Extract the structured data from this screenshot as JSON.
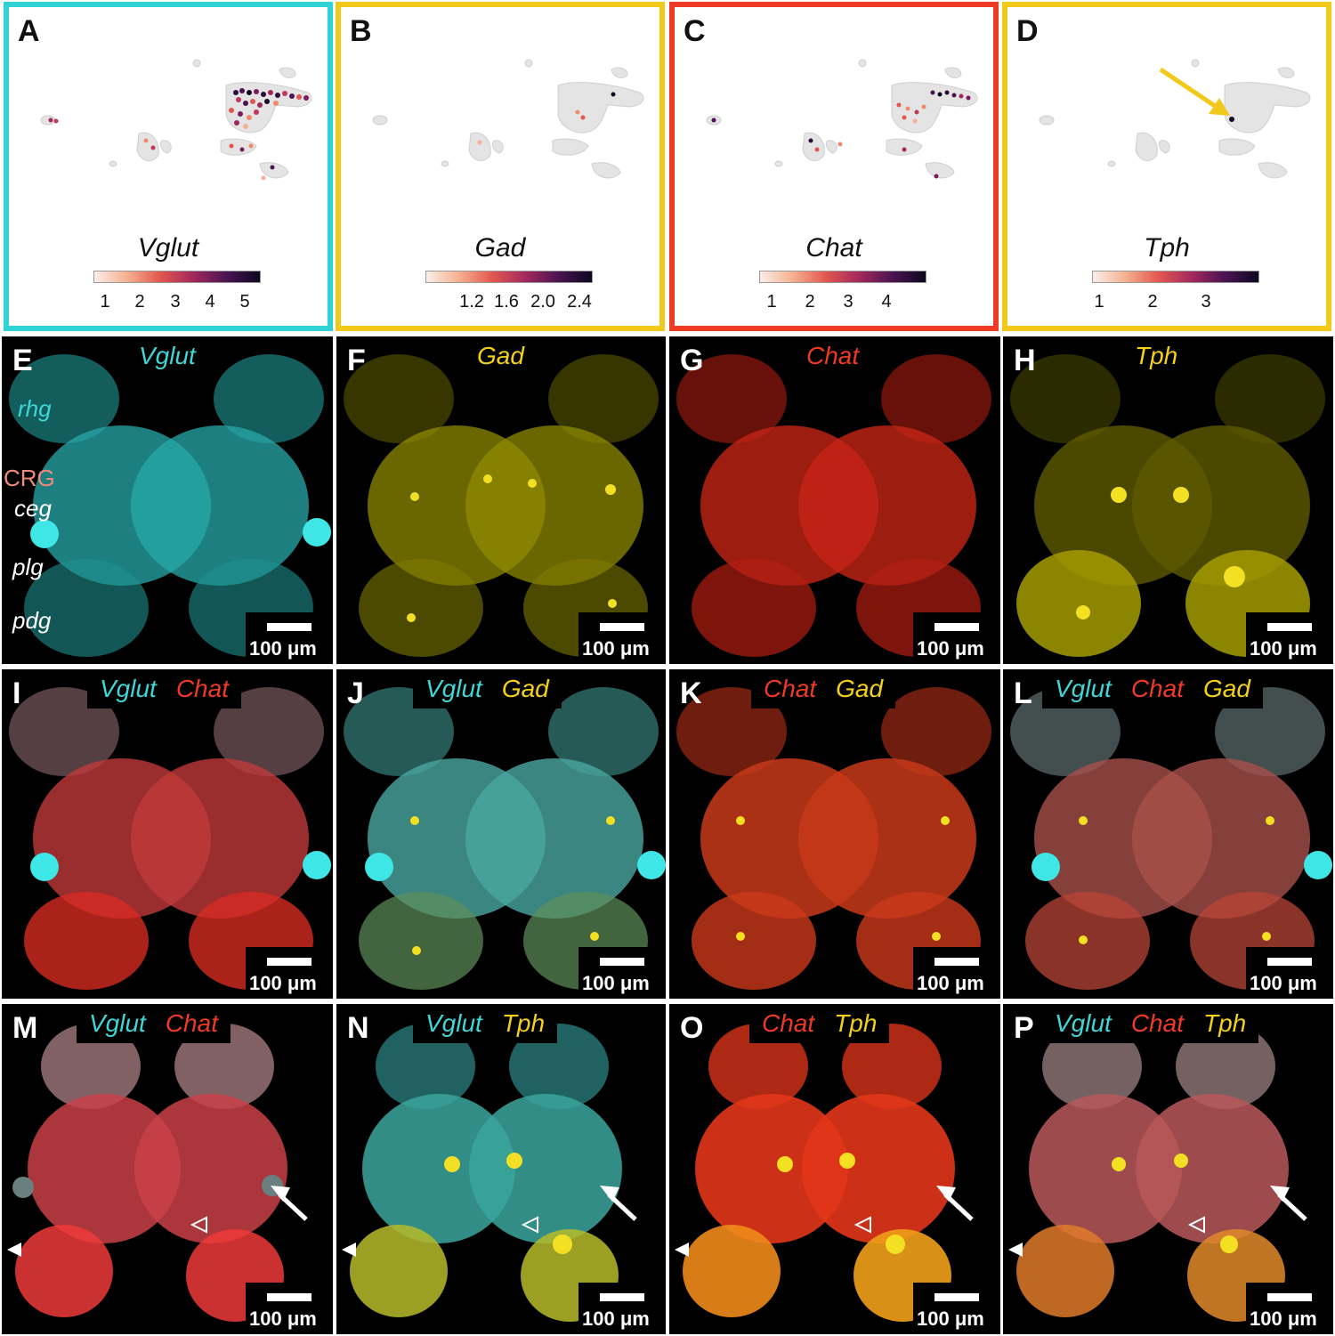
{
  "colors": {
    "vglut": "#3fd6d6",
    "gad": "#f4d117",
    "chat": "#ef3a24",
    "tph": "#f4d117",
    "crg": "#f08a7a",
    "frame_a": "#2fd3d6",
    "frame_b": "#f2c91b",
    "frame_c": "#ef3a24",
    "frame_d": "#f2c91b"
  },
  "umap_panels": [
    {
      "label": "A",
      "gene": "Vglut",
      "ticks": [
        "1",
        "2",
        "3",
        "4",
        "5"
      ]
    },
    {
      "label": "B",
      "gene": "Gad",
      "ticks": [
        "1.2",
        "1.6",
        "2.0",
        "2.4"
      ]
    },
    {
      "label": "C",
      "gene": "Chat",
      "ticks": [
        "1",
        "2",
        "3",
        "4"
      ]
    },
    {
      "label": "D",
      "gene": "Tph",
      "ticks": [
        "1",
        "2",
        "3"
      ]
    }
  ],
  "micro_panels": [
    {
      "label": "E",
      "tags": [
        "Vglut"
      ],
      "scale": "100 μm"
    },
    {
      "label": "F",
      "tags": [
        "Gad"
      ],
      "scale": "100 μm"
    },
    {
      "label": "G",
      "tags": [
        "Chat"
      ],
      "scale": "100 μm"
    },
    {
      "label": "H",
      "tags": [
        "Tph"
      ],
      "scale": "100 μm"
    },
    {
      "label": "I",
      "tags": [
        "Vglut",
        "Chat"
      ],
      "scale": "100 μm"
    },
    {
      "label": "J",
      "tags": [
        "Vglut",
        "Gad"
      ],
      "scale": "100 μm"
    },
    {
      "label": "K",
      "tags": [
        "Chat",
        "Gad"
      ],
      "scale": "100 μm"
    },
    {
      "label": "L",
      "tags": [
        "Vglut",
        "Chat",
        "Gad"
      ],
      "scale": "100 μm"
    },
    {
      "label": "M",
      "tags": [
        "Vglut",
        "Chat"
      ],
      "scale": "100 μm"
    },
    {
      "label": "N",
      "tags": [
        "Vglut",
        "Tph"
      ],
      "scale": "100 μm"
    },
    {
      "label": "O",
      "tags": [
        "Chat",
        "Tph"
      ],
      "scale": "100 μm"
    },
    {
      "label": "P",
      "tags": [
        "Vglut",
        "Chat",
        "Tph"
      ],
      "scale": "100 μm"
    }
  ],
  "regions": {
    "rhg": "rhg",
    "crg": "CRG",
    "ceg": "ceg",
    "plg": "plg",
    "pdg": "pdg"
  }
}
